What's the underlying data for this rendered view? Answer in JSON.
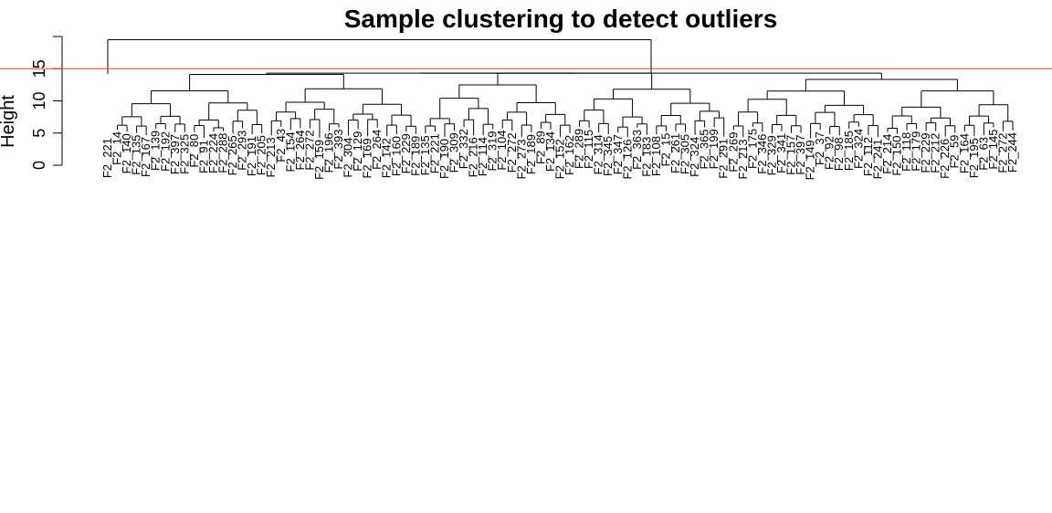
{
  "chart_data": {
    "type": "dendrogram",
    "title": "Sample clustering to detect outliers",
    "ylabel": "Height",
    "xlabel": "",
    "ylim": [
      0,
      20
    ],
    "yticks": [
      0,
      5,
      10,
      15
    ],
    "ytick_labels": [
      "0",
      "5",
      "10",
      "15"
    ],
    "cut_height": 15,
    "cut_color": "#e8413c",
    "top_merge_height": 19.5,
    "outlier": {
      "label": "F2_221",
      "merge_height": 19.5
    },
    "visible_leaf_labels": [
      "F2_221",
      "F2_14",
      "F2_140",
      "F2_135",
      "F2_167",
      "F2_139",
      "F2_192",
      "F2_397",
      "F2_325",
      "F2_80",
      "F2_91",
      "F2_224",
      "F2_288",
      "F2_265",
      "F2_293",
      "F2_191",
      "F2_205",
      "F2_213",
      "F2_43",
      "F2_154",
      "F2_264",
      "F2_272",
      "F2_159",
      "F2_196",
      "F2_393",
      "F2_304",
      "F2_129",
      "F2_169",
      "F2_264",
      "F2_142",
      "F2_160",
      "F2_229",
      "F2_189",
      "F2_135",
      "F2_221",
      "F2_190",
      "F2_309",
      "F2_332",
      "F2_216",
      "F2_114",
      "F2_319",
      "F2_104",
      "F2_272",
      "F2_273",
      "F2_189",
      "F2_89",
      "F2_134",
      "F2_152",
      "F2_162",
      "F2_289",
      "F2_115",
      "F2_314",
      "F2_345",
      "F2_347",
      "F2_126",
      "F2_363",
      "F2_183",
      "F2_108",
      "F2_15",
      "F2_261",
      "F2_305",
      "F2_324",
      "F2_365",
      "F2_199",
      "F2_291",
      "F2_269",
      "F2_213",
      "F2_175",
      "F2_346",
      "F2_329",
      "F2_341",
      "F2_157",
      "F2_397",
      "F2_149",
      "F2_37",
      "F2_92",
      "F2_98",
      "F2_185",
      "F2_324",
      "F2_112",
      "F2_241",
      "F2_214",
      "F2_150",
      "F2_118",
      "F2_179",
      "F2_229",
      "F2_212",
      "F2_226",
      "F2_59",
      "F2_164",
      "F2_195",
      "F2_63",
      "F2_145",
      "F2_272",
      "F2_244"
    ]
  }
}
